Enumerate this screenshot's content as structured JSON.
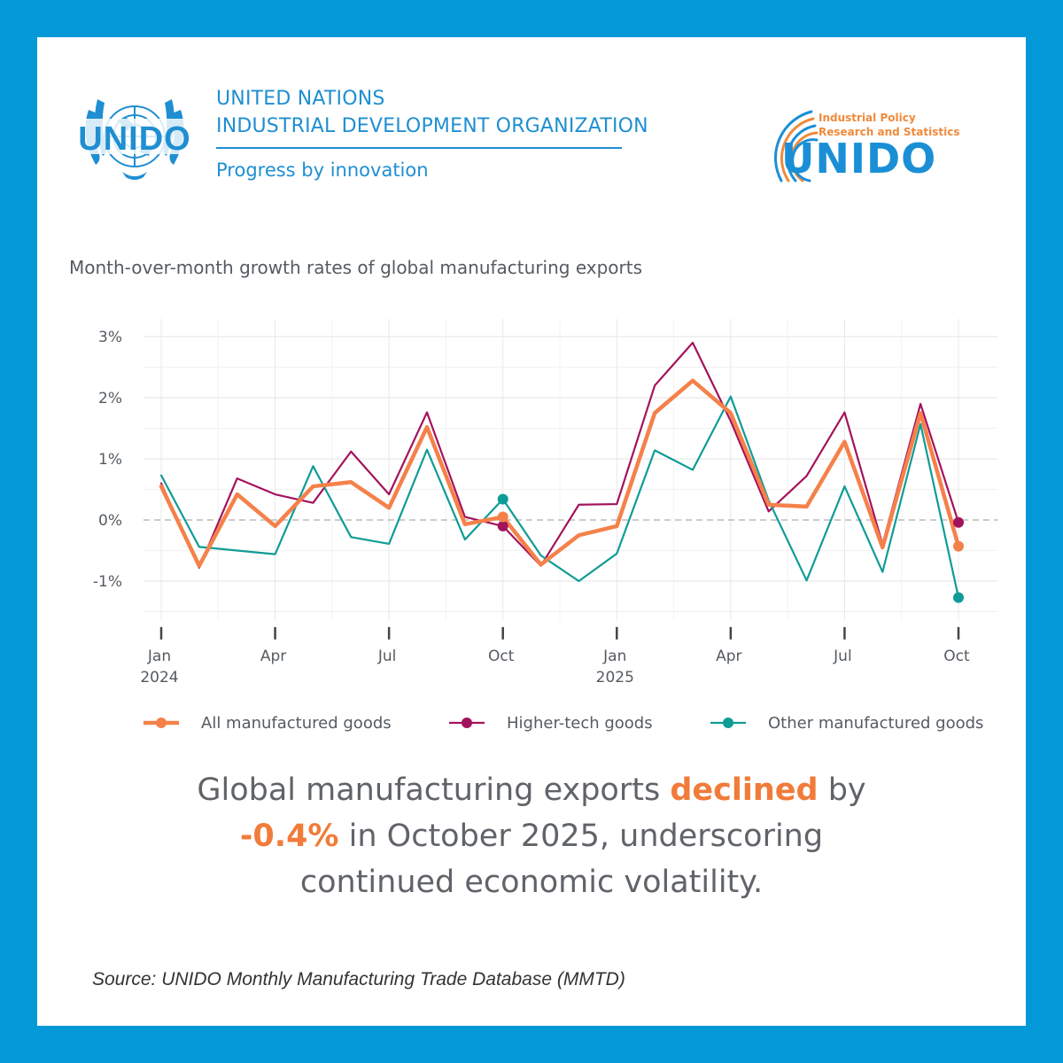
{
  "header": {
    "org_line1": "UNITED NATIONS",
    "org_line2": "INDUSTRIAL DEVELOPMENT ORGANIZATION",
    "tagline": "Progress by innovation",
    "emblem_word": "UNIDO",
    "ips_line1": "Industrial Policy",
    "ips_line2": "Research and Statistics",
    "ips_word": "UNIDO"
  },
  "colors": {
    "frame": "#0399d9",
    "brand_blue": "#1f8fd1",
    "accent_orange": "#f17b3a",
    "all_goods": "#f5814a",
    "higher_tech": "#a3135c",
    "other_goods": "#0f9c96"
  },
  "chart_data": {
    "type": "line",
    "title": "Month-over-month growth rates of global manufacturing exports",
    "x": [
      "2024-01",
      "2024-02",
      "2024-03",
      "2024-04",
      "2024-05",
      "2024-06",
      "2024-07",
      "2024-08",
      "2024-09",
      "2024-10",
      "2024-11",
      "2024-12",
      "2025-01",
      "2025-02",
      "2025-03",
      "2025-04",
      "2025-05",
      "2025-06",
      "2025-07",
      "2025-08",
      "2025-09",
      "2025-10"
    ],
    "x_ticks": [
      {
        "month": "2024-01",
        "label": "Jan",
        "year": "2024"
      },
      {
        "month": "2024-04",
        "label": "Apr",
        "year": ""
      },
      {
        "month": "2024-07",
        "label": "Jul",
        "year": ""
      },
      {
        "month": "2024-10",
        "label": "Oct",
        "year": ""
      },
      {
        "month": "2025-01",
        "label": "Jan",
        "year": "2025"
      },
      {
        "month": "2025-04",
        "label": "Apr",
        "year": ""
      },
      {
        "month": "2025-07",
        "label": "Jul",
        "year": ""
      },
      {
        "month": "2025-10",
        "label": "Oct",
        "year": ""
      }
    ],
    "y_ticks": [
      {
        "value": -1,
        "label": "-1%"
      },
      {
        "value": 0,
        "label": "0%"
      },
      {
        "value": 1,
        "label": "1%"
      },
      {
        "value": 2,
        "label": "2%"
      },
      {
        "value": 3,
        "label": "3%"
      }
    ],
    "ylim": [
      -1.65,
      3.3
    ],
    "unit": "%",
    "zero_line": "dashed",
    "grid": true,
    "legend_position": "bottom",
    "highlight_months": [
      "2024-10",
      "2025-10"
    ],
    "series": [
      {
        "name": "All manufactured goods",
        "color": "#f5814a",
        "width": 4.5,
        "values": [
          0.55,
          -0.75,
          0.42,
          -0.1,
          0.55,
          0.62,
          0.2,
          1.52,
          -0.07,
          0.05,
          -0.73,
          -0.25,
          -0.1,
          1.75,
          2.28,
          1.75,
          0.25,
          0.22,
          1.28,
          -0.45,
          1.75,
          -0.43
        ]
      },
      {
        "name": "Higher-tech goods",
        "color": "#a3135c",
        "width": 2.2,
        "values": [
          0.6,
          -0.78,
          0.68,
          0.42,
          0.28,
          1.12,
          0.42,
          1.76,
          0.05,
          -0.1,
          -0.75,
          0.25,
          0.26,
          2.2,
          2.9,
          1.62,
          0.14,
          0.72,
          1.76,
          -0.4,
          1.9,
          -0.04
        ]
      },
      {
        "name": "Other manufactured goods",
        "color": "#0f9c96",
        "width": 2.2,
        "values": [
          0.73,
          -0.44,
          -0.5,
          -0.56,
          0.88,
          -0.28,
          -0.39,
          1.15,
          -0.32,
          0.34,
          -0.58,
          -1.0,
          -0.55,
          1.14,
          0.82,
          2.02,
          0.32,
          -0.99,
          0.55,
          -0.85,
          1.57,
          -1.27
        ]
      }
    ]
  },
  "headline": {
    "line1_pre": "Global manufacturing exports ",
    "line1_accent": "declined",
    "line1_post": " by",
    "line2_accent": "-0.4%",
    "line2_post": " in October 2025, underscoring",
    "line3": "continued economic volatility."
  },
  "source": "Source: UNIDO Monthly Manufacturing Trade Database (MMTD)"
}
